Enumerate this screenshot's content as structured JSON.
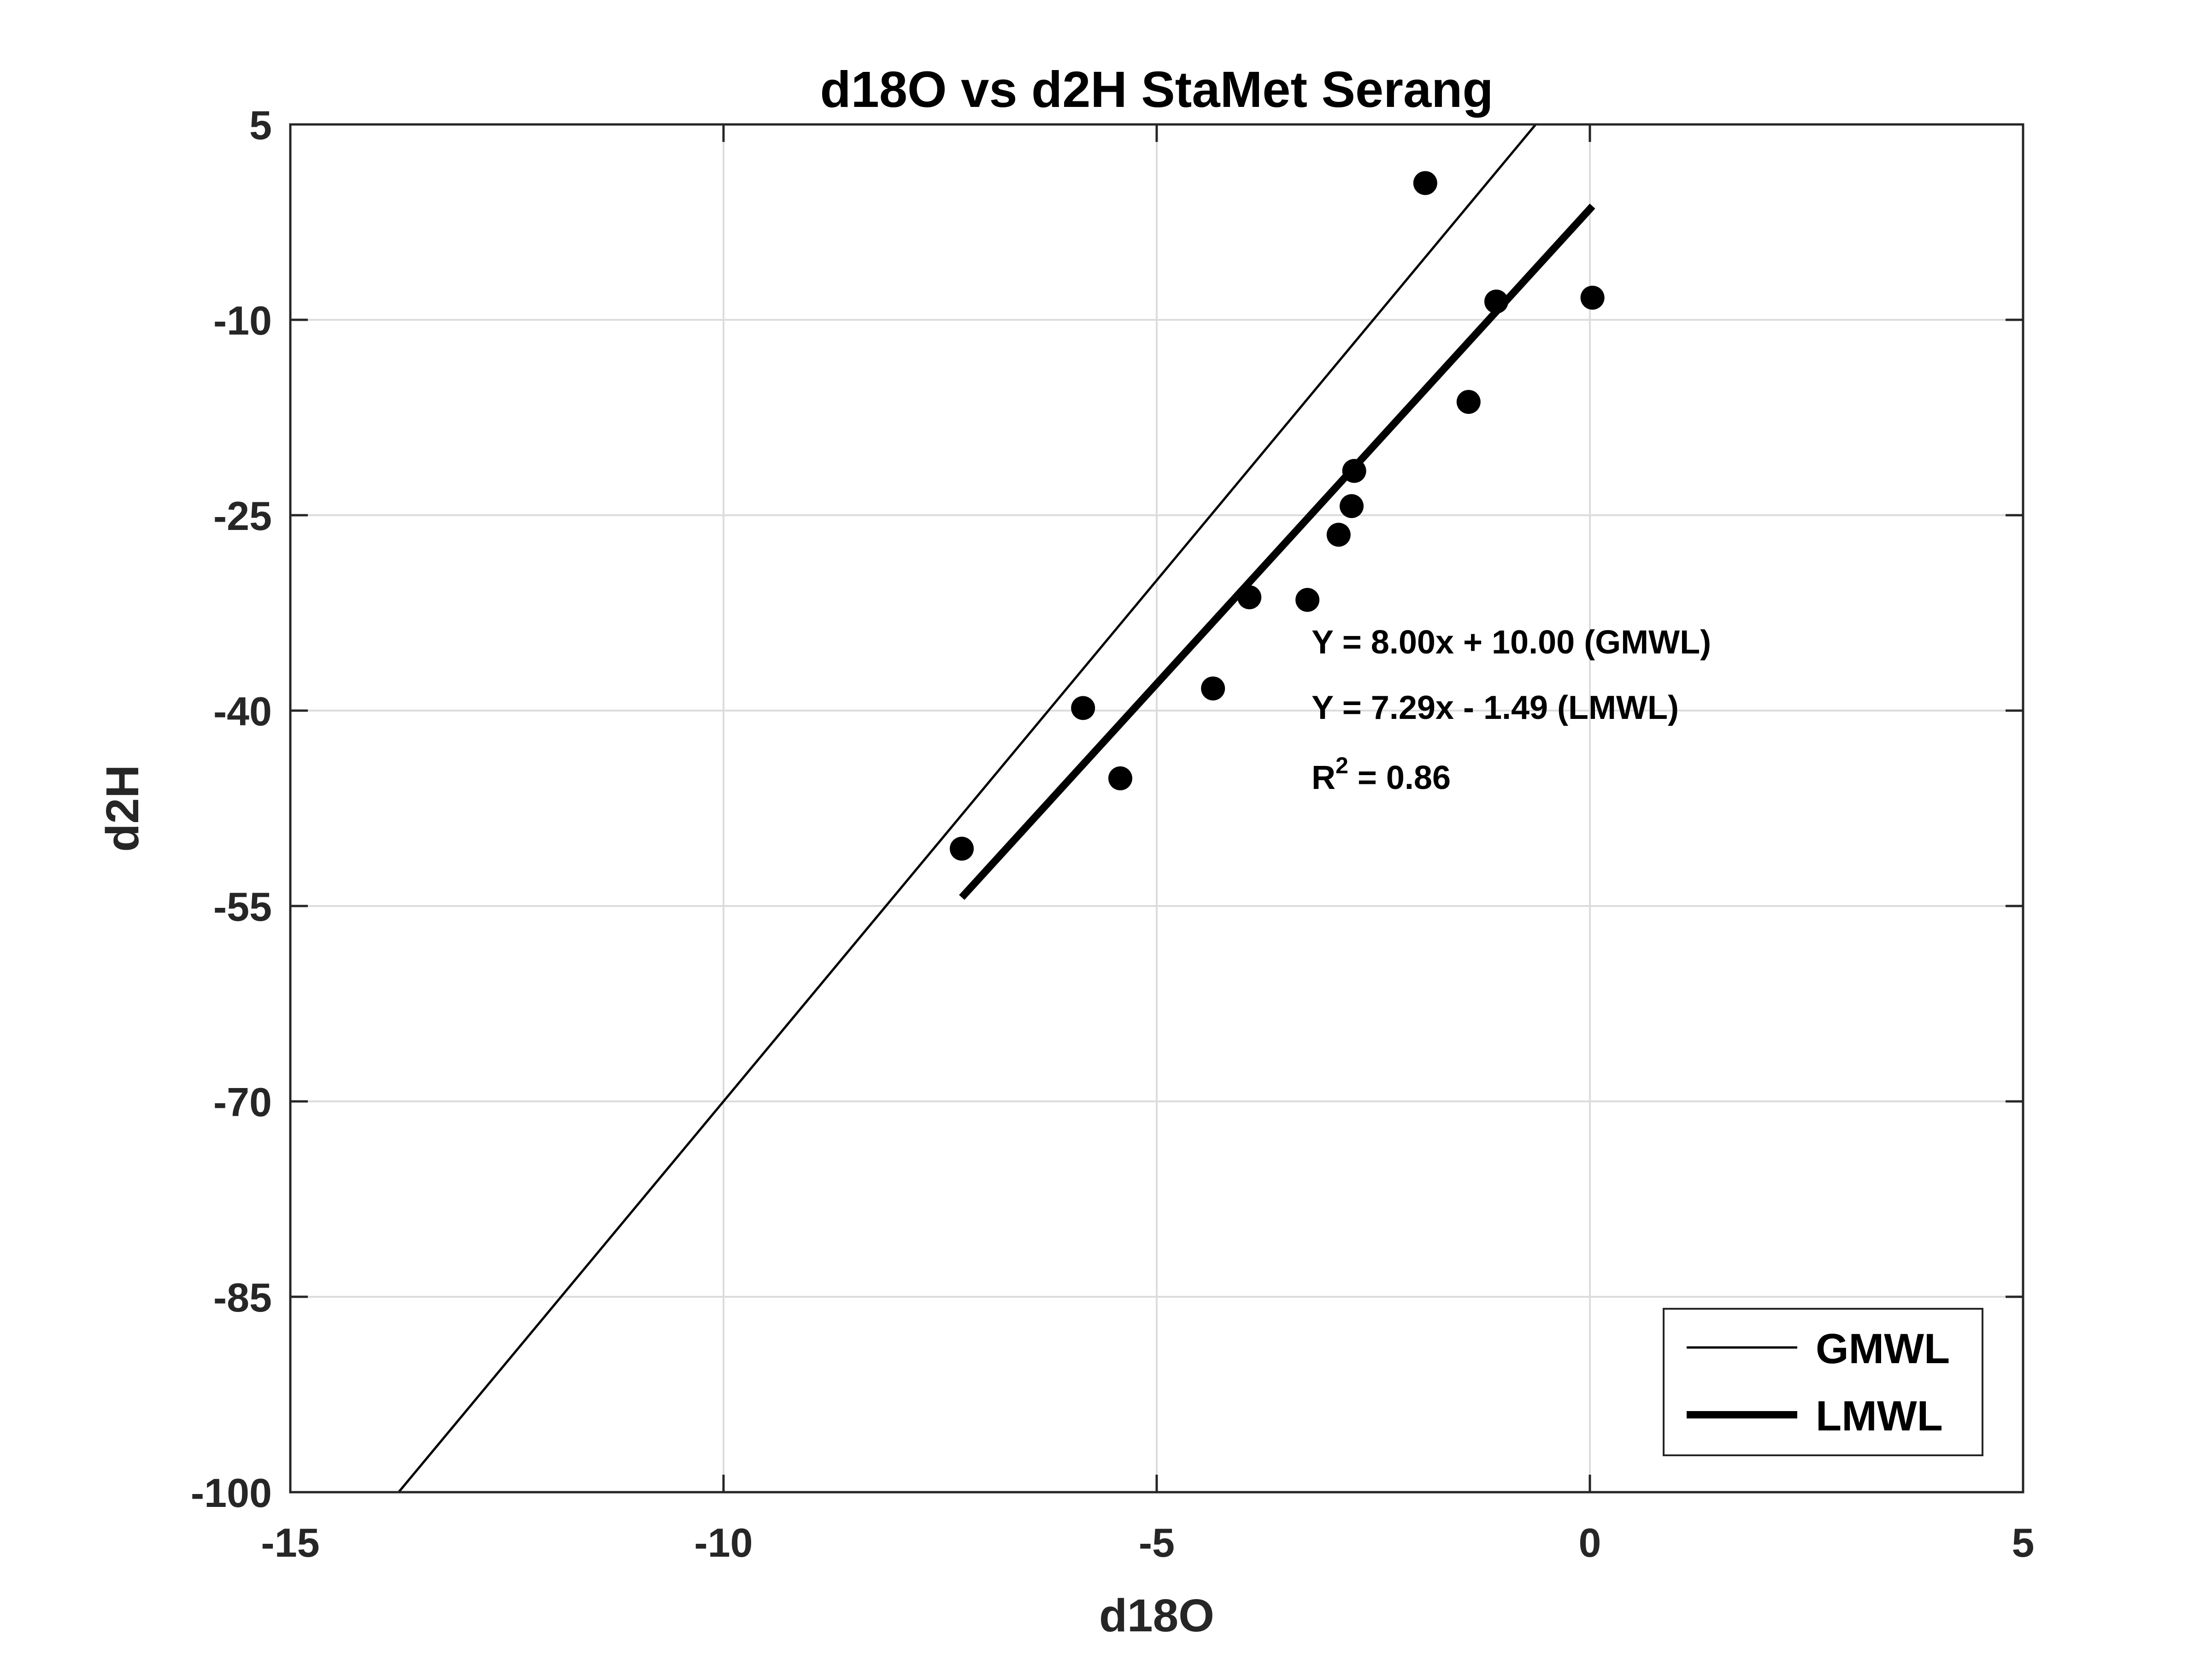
{
  "chart_data": {
    "type": "scatter",
    "title": "d18O vs d2H StaMet Serang",
    "xlabel": "d18O",
    "ylabel": "d2H",
    "xlim": [
      -15,
      5
    ],
    "ylim": [
      -100,
      5
    ],
    "xticks": [
      -15,
      -10,
      -5,
      0,
      5
    ],
    "yticks": [
      5,
      -10,
      -25,
      -40,
      -55,
      -70,
      -85,
      -100
    ],
    "grid": true,
    "points": {
      "x": [
        -7.25,
        -5.85,
        -5.42,
        -4.35,
        -3.93,
        -3.26,
        -2.9,
        -2.75,
        -2.72,
        -1.9,
        -1.4,
        -1.08,
        0.03
      ],
      "y": [
        -50.6,
        -39.8,
        -45.2,
        -38.3,
        -31.3,
        -31.5,
        -26.5,
        -24.3,
        -21.6,
        0.5,
        -16.3,
        -8.6,
        -8.3
      ]
    },
    "lines": [
      {
        "name": "GMWL",
        "slope": 8.0,
        "intercept": 10.0,
        "x_range": [
          -13.75,
          -0.62
        ]
      },
      {
        "name": "LMWL",
        "slope": 7.29,
        "intercept": -1.49,
        "x_range": [
          -7.25,
          0.03
        ]
      }
    ],
    "annotations": [
      "Y = 8.00x + 10.00 (GMWL)",
      "Y = 7.29x - 1.49 (LMWL)",
      "R",
      "2",
      " = 0.86"
    ],
    "legend": {
      "placement": "bottom-right",
      "entries": [
        "GMWL",
        "LMWL"
      ]
    }
  }
}
